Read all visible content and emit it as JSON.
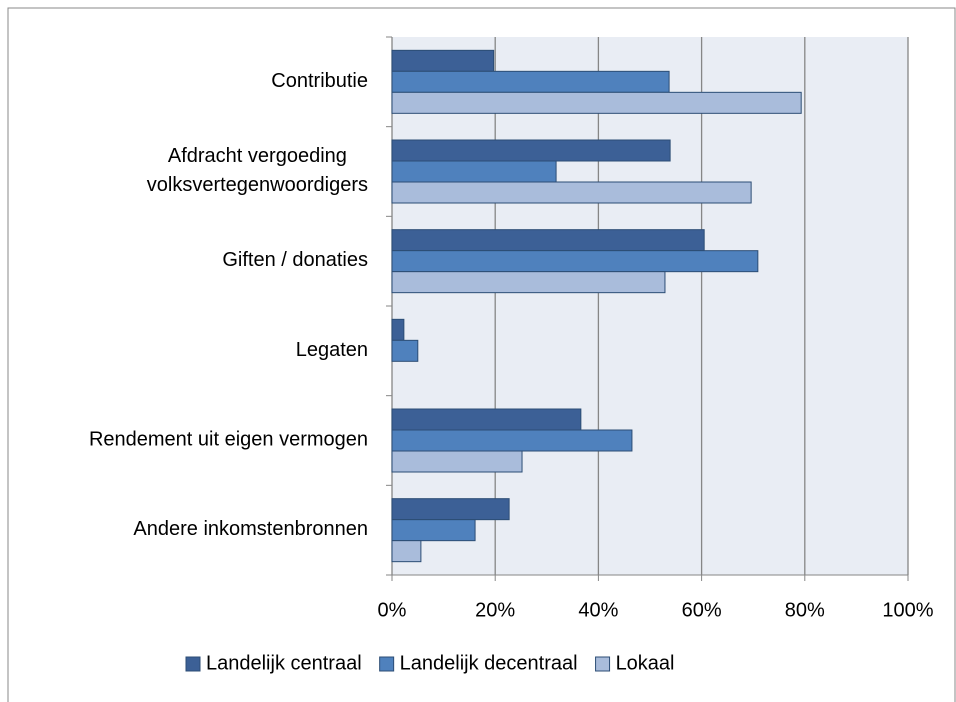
{
  "chart_data": {
    "type": "bar",
    "orientation": "horizontal",
    "categories": [
      "Contributie",
      "Afdracht vergoeding\nvolksvertegenwoordigers",
      "Giften / donaties",
      "Legaten",
      "Rendement uit eigen vermogen",
      "Andere inkomstenbronnen"
    ],
    "series": [
      {
        "name": "Landelijk centraal",
        "color": "#3c6096",
        "values": [
          19.7,
          53.9,
          60.5,
          2.3,
          36.6,
          22.7
        ]
      },
      {
        "name": "Landelijk decentraal",
        "color": "#4f81bd",
        "values": [
          53.7,
          31.8,
          70.9,
          5.0,
          46.5,
          16.1
        ]
      },
      {
        "name": "Lokaal",
        "color": "#a9bcdb",
        "values": [
          79.3,
          69.6,
          52.9,
          null,
          25.2,
          5.6
        ]
      }
    ],
    "xlim": [
      0,
      100
    ],
    "xticks": [
      {
        "value": 0,
        "label": "0%"
      },
      {
        "value": 20,
        "label": "20%"
      },
      {
        "value": 40,
        "label": "40%"
      },
      {
        "value": 60,
        "label": "60%"
      },
      {
        "value": 80,
        "label": "80%"
      },
      {
        "value": 100,
        "label": "100%"
      }
    ],
    "grid": true,
    "legend": "bottom"
  }
}
